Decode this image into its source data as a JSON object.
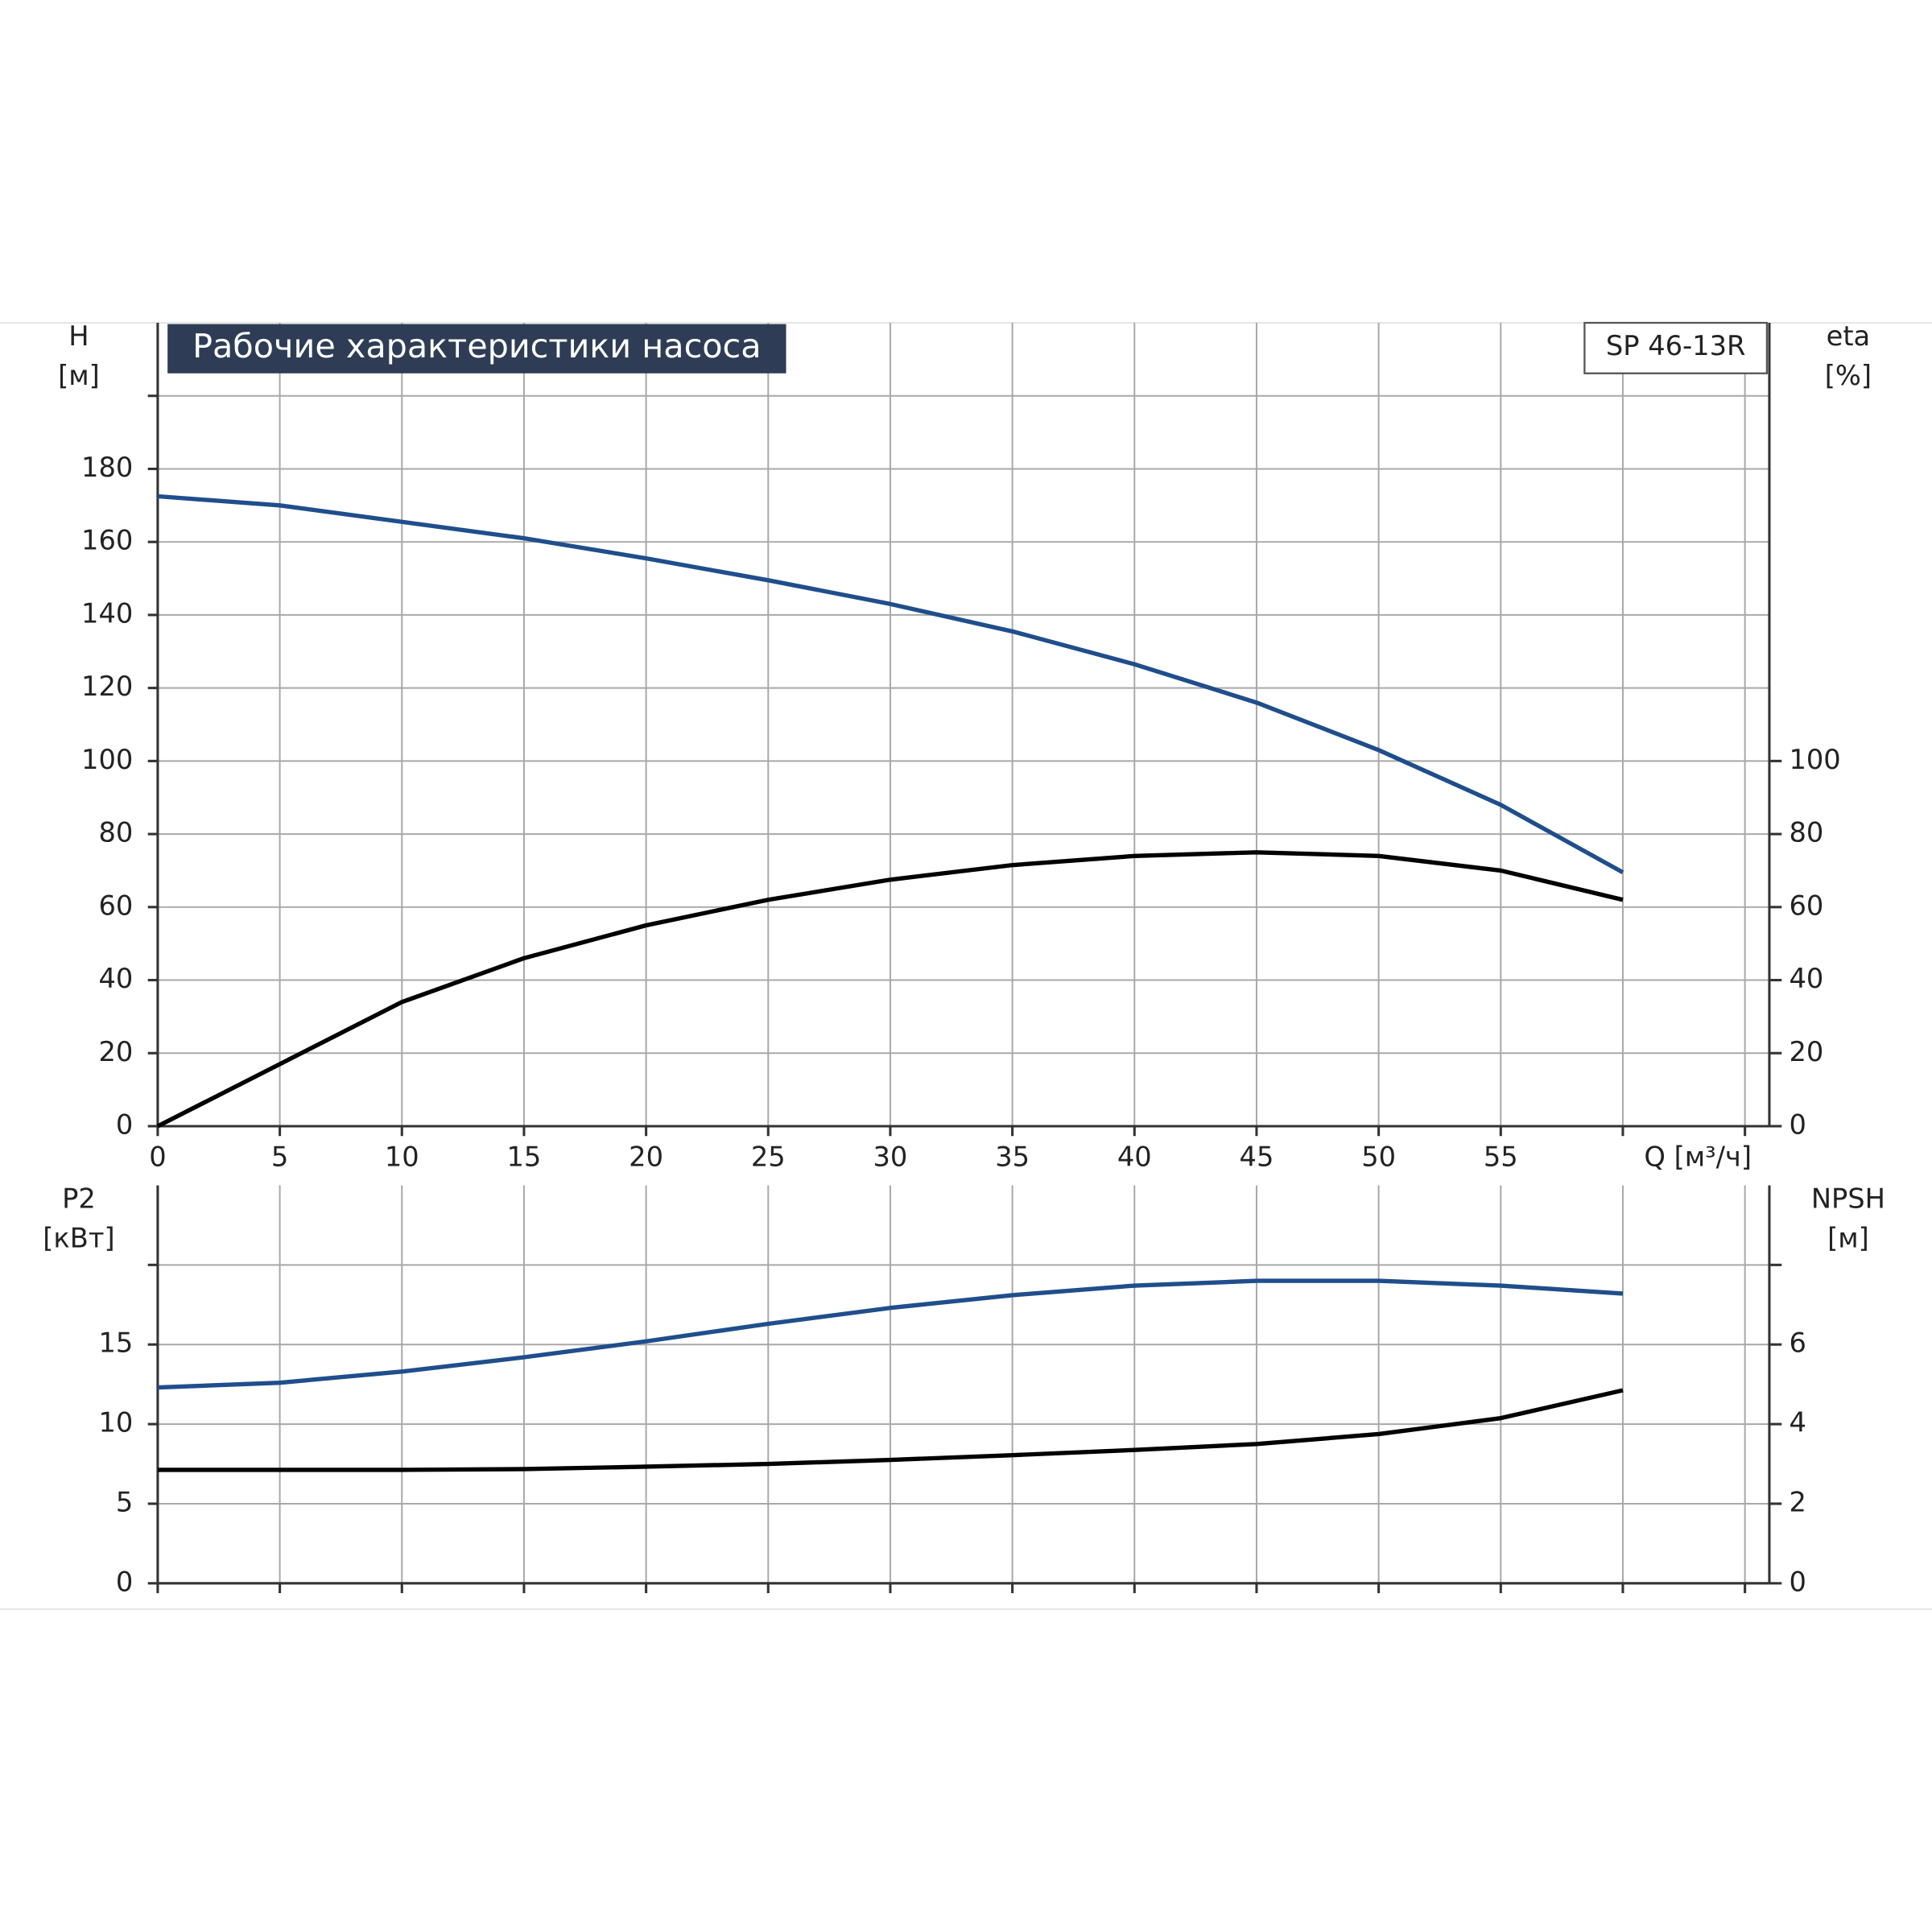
{
  "chart_data": [
    {
      "type": "line",
      "title": "Рабочие характеристики насоса",
      "model": "SP 46-13R",
      "ylabel": "H",
      "ylabel_unit": "[м]",
      "y2label": "eta",
      "y2label_unit": "[%]",
      "xlabel": "Q [м³/ч]",
      "x": [
        0,
        5,
        10,
        15,
        20,
        25,
        30,
        35,
        40,
        45,
        50,
        55,
        60
      ],
      "series": [
        {
          "color": "#1f4e8c",
          "values": [
            172.5,
            170,
            165.5,
            161,
            155.5,
            149.5,
            143,
            135.5,
            126.5,
            116,
            103,
            88,
            69.5
          ]
        },
        {
          "color": "#000000",
          "axis": "y2",
          "values": [
            0,
            17,
            34,
            46,
            55,
            62,
            67.5,
            71.5,
            74,
            75,
            74,
            70,
            62
          ]
        }
      ],
      "xlim": [
        0,
        66
      ],
      "xticks": [
        0,
        5,
        10,
        15,
        20,
        25,
        30,
        35,
        40,
        45,
        50,
        55,
        {
          "value": 60,
          "label": null
        },
        {
          "value": 65,
          "label": null
        }
      ],
      "ylim": [
        0,
        220
      ],
      "yticks": [
        0,
        20,
        40,
        60,
        80,
        100,
        120,
        140,
        160,
        180,
        {
          "value": 200,
          "label": null
        }
      ],
      "y2lim": [
        0,
        220
      ],
      "y2ticks": [
        0,
        20,
        40,
        60,
        80,
        100
      ],
      "grid": true
    },
    {
      "type": "line",
      "ylabel": "P2",
      "ylabel_unit": "[кВт]",
      "y2label": "NPSH",
      "y2label_unit": "[м]",
      "x": [
        0,
        5,
        10,
        15,
        20,
        25,
        30,
        35,
        40,
        45,
        50,
        55,
        60
      ],
      "series": [
        {
          "color": "#1f4e8c",
          "values": [
            12.3,
            12.6,
            13.3,
            14.2,
            15.2,
            16.3,
            17.3,
            18.1,
            18.7,
            19.0,
            19.0,
            18.7,
            18.2
          ]
        },
        {
          "color": "#000000",
          "axis": "y2",
          "values": [
            2.85,
            2.85,
            2.85,
            2.87,
            2.93,
            3.0,
            3.1,
            3.22,
            3.35,
            3.5,
            3.75,
            4.15,
            4.85
          ]
        }
      ],
      "xlim": [
        0,
        66
      ],
      "xticks": [
        {
          "value": 0,
          "label": null
        },
        {
          "value": 5,
          "label": null
        },
        {
          "value": 10,
          "label": null
        },
        {
          "value": 15,
          "label": null
        },
        {
          "value": 20,
          "label": null
        },
        {
          "value": 25,
          "label": null
        },
        {
          "value": 30,
          "label": null
        },
        {
          "value": 35,
          "label": null
        },
        {
          "value": 40,
          "label": null
        },
        {
          "value": 45,
          "label": null
        },
        {
          "value": 50,
          "label": null
        },
        {
          "value": 55,
          "label": null
        },
        {
          "value": 60,
          "label": null
        },
        {
          "value": 65,
          "label": null
        }
      ],
      "ylim": [
        0,
        25
      ],
      "yticks": [
        0,
        5,
        10,
        15,
        {
          "value": 20,
          "label": null
        }
      ],
      "y2lim": [
        0,
        10
      ],
      "y2ticks": [
        0,
        2,
        4,
        6,
        {
          "value": 8,
          "label": null
        }
      ],
      "grid": true
    }
  ]
}
